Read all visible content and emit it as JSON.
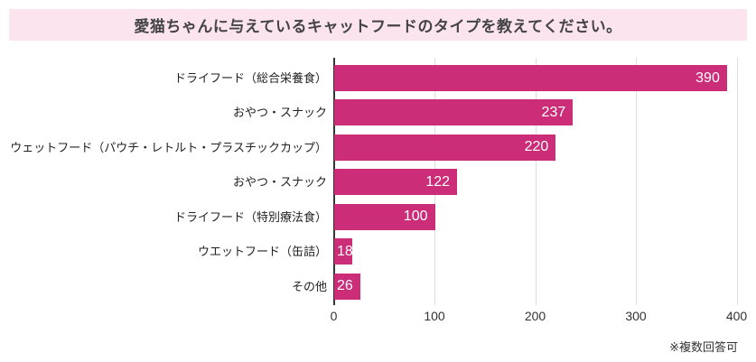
{
  "title": "愛猫ちゃんに与えているキャットフードのタイプを教えてください。",
  "footnote": "※複数回答可",
  "colors": {
    "bar": "#CB2D78",
    "banner_bg": "#FBE4EE",
    "title_text": "#444444",
    "axis_line": "#333333",
    "gridline": "#DDDDDD",
    "label_text": "#222222",
    "value_text": "#FFFFFF"
  },
  "chart_data": {
    "type": "bar",
    "orientation": "horizontal",
    "title": "愛猫ちゃんに与えているキャットフードのタイプを教えてください。",
    "categories": [
      "ドライフード（総合栄養食）",
      "おやつ・スナック",
      "ウェットフード（パウチ・レトルト・プラスチックカップ）",
      "おやつ・スナック",
      "ドライフード（特別療法食）",
      "ウエットフード（缶詰）",
      "その他"
    ],
    "values": [
      390,
      237,
      220,
      122,
      100,
      18,
      26
    ],
    "xlabel": "",
    "ylabel": "",
    "xlim": [
      0,
      400
    ],
    "xticks": [
      0,
      100,
      200,
      300,
      400
    ],
    "grid": true,
    "legend": false,
    "annotation": "※複数回答可"
  }
}
